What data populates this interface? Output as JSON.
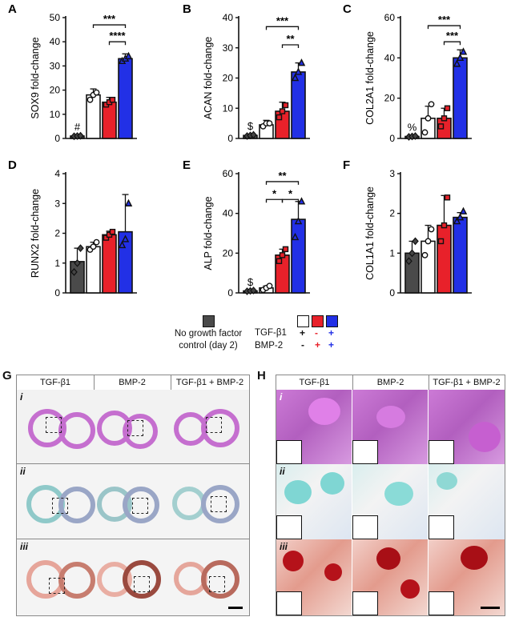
{
  "colors": {
    "control": "#4a4a4a",
    "tgf": "#ffffff",
    "bmp": "#e8212a",
    "both": "#2230e6",
    "edge": "#111111"
  },
  "chart_data": [
    {
      "panel": "A",
      "type": "bar",
      "ylabel": "SOX9 fold-change",
      "ylim": [
        0,
        50
      ],
      "yticks": [
        "0",
        "10",
        "20",
        "30",
        "40",
        "50"
      ],
      "categories": [
        "No growth factor",
        "TGF-β1",
        "BMP-2",
        "TGF-β1 + BMP-2"
      ],
      "values": [
        1,
        18,
        15,
        33
      ],
      "errors": [
        0.3,
        2.5,
        2,
        2
      ],
      "points": [
        [
          0.9,
          1,
          1.1
        ],
        [
          16,
          18,
          19
        ],
        [
          14,
          15,
          16
        ],
        [
          32,
          33,
          34
        ]
      ],
      "markers": [
        "diamond",
        "circle",
        "square",
        "triangle"
      ],
      "labels": [
        "#",
        "",
        "",
        ""
      ],
      "brackets": [
        {
          "from": 1,
          "to": 3,
          "text": "***",
          "level": 47
        },
        {
          "from": 2,
          "to": 3,
          "text": "****",
          "level": 40
        }
      ]
    },
    {
      "panel": "B",
      "type": "bar",
      "ylabel": "ACAN fold-change",
      "ylim": [
        0,
        40
      ],
      "yticks": [
        "0",
        "10",
        "20",
        "30",
        "40"
      ],
      "categories": [
        "No growth factor",
        "TGF-β1",
        "BMP-2",
        "TGF-β1 + BMP-2"
      ],
      "values": [
        1,
        4.5,
        9,
        22
      ],
      "errors": [
        0.3,
        1.5,
        3,
        3
      ],
      "points": [
        [
          0.8,
          1,
          1.2
        ],
        [
          4,
          5,
          5
        ],
        [
          7,
          9,
          11
        ],
        [
          20,
          22,
          25
        ]
      ],
      "markers": [
        "diamond",
        "circle",
        "square",
        "triangle"
      ],
      "labels": [
        "$",
        "",
        "",
        ""
      ],
      "brackets": [
        {
          "from": 1,
          "to": 3,
          "text": "***",
          "level": 37
        },
        {
          "from": 2,
          "to": 3,
          "text": "**",
          "level": 31
        }
      ]
    },
    {
      "panel": "C",
      "type": "bar",
      "ylabel": "COL2A1 fold-change",
      "ylim": [
        0,
        60
      ],
      "yticks": [
        "0",
        "20",
        "40",
        "60"
      ],
      "categories": [
        "No growth factor",
        "TGF-β1",
        "BMP-2",
        "TGF-β1 + BMP-2"
      ],
      "values": [
        1,
        10,
        10,
        40
      ],
      "errors": [
        0.3,
        6,
        5,
        4
      ],
      "points": [
        [
          0.8,
          1,
          1.2
        ],
        [
          3,
          10,
          17
        ],
        [
          6,
          10,
          15
        ],
        [
          37,
          40,
          43
        ]
      ],
      "markers": [
        "diamond",
        "circle",
        "square",
        "triangle"
      ],
      "labels": [
        "%",
        "",
        "",
        ""
      ],
      "brackets": [
        {
          "from": 1,
          "to": 3,
          "text": "***",
          "level": 56
        },
        {
          "from": 2,
          "to": 3,
          "text": "***",
          "level": 48
        }
      ]
    },
    {
      "panel": "D",
      "type": "bar",
      "ylabel": "RUNX2 fold-change",
      "ylim": [
        0,
        4
      ],
      "yticks": [
        "0",
        "1",
        "2",
        "3",
        "4"
      ],
      "categories": [
        "No growth factor",
        "TGF-β1",
        "BMP-2",
        "TGF-β1 + BMP-2"
      ],
      "values": [
        1.05,
        1.55,
        1.95,
        2.05
      ],
      "errors": [
        0.45,
        0.15,
        0.12,
        1.25
      ],
      "points": [
        [
          0.7,
          1,
          1.5
        ],
        [
          1.45,
          1.55,
          1.7
        ],
        [
          1.85,
          1.95,
          2.05
        ],
        [
          1.6,
          1.8,
          3
        ]
      ],
      "markers": [
        "diamond",
        "circle",
        "square",
        "triangle"
      ],
      "labels": [
        "",
        "",
        "",
        ""
      ],
      "brackets": []
    },
    {
      "panel": "E",
      "type": "bar",
      "ylabel": "ALP fold-change",
      "ylim": [
        0,
        60
      ],
      "yticks": [
        "0",
        "20",
        "40",
        "60"
      ],
      "categories": [
        "No growth factor",
        "TGF-β1",
        "BMP-2",
        "TGF-β1 + BMP-2"
      ],
      "values": [
        1,
        2.5,
        19,
        37
      ],
      "errors": [
        0.3,
        1,
        3,
        9
      ],
      "points": [
        [
          0.8,
          1,
          1.2
        ],
        [
          1.5,
          2.5,
          3.5
        ],
        [
          16,
          19,
          22
        ],
        [
          28,
          36,
          46
        ]
      ],
      "markers": [
        "diamond",
        "circle",
        "square",
        "triangle"
      ],
      "labels": [
        "$",
        "",
        "",
        ""
      ],
      "brackets": [
        {
          "from": 1,
          "to": 3,
          "text": "**",
          "level": 56
        },
        {
          "from": 1,
          "to": 2,
          "text": "*",
          "level": 47
        },
        {
          "from": 2,
          "to": 3,
          "text": "*",
          "level": 47
        }
      ]
    },
    {
      "panel": "F",
      "type": "bar",
      "ylabel": "COL1A1 fold-change",
      "ylim": [
        0,
        3
      ],
      "yticks": [
        "0",
        "1",
        "2",
        "3"
      ],
      "categories": [
        "No growth factor",
        "TGF-β1",
        "BMP-2",
        "TGF-β1 + BMP-2"
      ],
      "values": [
        1,
        1.3,
        1.7,
        1.9
      ],
      "errors": [
        0.3,
        0.4,
        0.75,
        0.12
      ],
      "points": [
        [
          0.8,
          1,
          1.3
        ],
        [
          0.95,
          1.3,
          1.6
        ],
        [
          1.3,
          1.7,
          2.4
        ],
        [
          1.8,
          1.9,
          2.05
        ]
      ],
      "markers": [
        "diamond",
        "circle",
        "square",
        "triangle"
      ],
      "labels": [
        "",
        "",
        "",
        ""
      ],
      "brackets": []
    }
  ],
  "legend": {
    "control_line1": "No growth factor",
    "control_line2": "control (day 2)",
    "tgf_label": "TGF-β1",
    "bmp_label": "BMP-2",
    "tgf_signs": [
      "+",
      "-",
      "+"
    ],
    "bmp_signs": [
      "-",
      "+",
      "+"
    ]
  },
  "histology": {
    "g_label": "G",
    "h_label": "H",
    "columns": [
      "TGF-β1",
      "BMP-2",
      "TGF-β1 + BMP-2"
    ],
    "rows": [
      "i",
      "ii",
      "iii"
    ]
  }
}
